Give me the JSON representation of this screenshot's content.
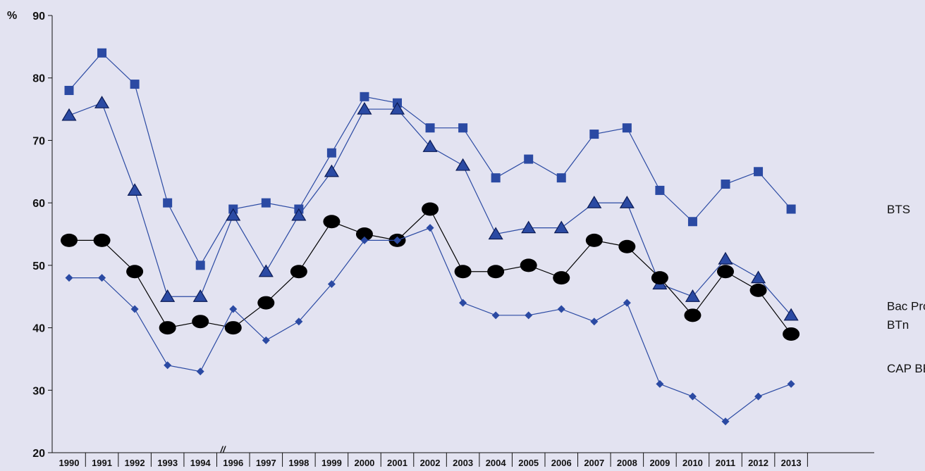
{
  "chart_data": {
    "type": "line",
    "ylabel": "%",
    "ylim": [
      20,
      90
    ],
    "yticks": [
      "20",
      "30",
      "40",
      "50",
      "60",
      "70",
      "80",
      "90"
    ],
    "categories": [
      "1990",
      "1991",
      "1992",
      "1993",
      "1994",
      "1996",
      "1997",
      "1998",
      "1999",
      "2000",
      "2001",
      "2002",
      "2003",
      "2004",
      "2005",
      "2006",
      "2007",
      "2008",
      "2009",
      "2010",
      "2011",
      "2012",
      "2013"
    ],
    "axis_break": "//",
    "axis_break_after": "1994",
    "grid": false,
    "legend": "inline-right",
    "colors": {
      "blue": "#2b4aa3",
      "black": "#000000",
      "background": "#e3e3f1"
    },
    "series": [
      {
        "name": "BTS",
        "marker": "square",
        "color": "#2b4aa3",
        "values": [
          78,
          84,
          79,
          60,
          50,
          59,
          60,
          59,
          68,
          77,
          76,
          72,
          72,
          64,
          67,
          64,
          71,
          72,
          62,
          57,
          63,
          65,
          59
        ]
      },
      {
        "name": "Bac Pro",
        "marker": "triangle",
        "color": "#2b4aa3",
        "values": [
          74,
          76,
          62,
          45,
          45,
          58,
          49,
          58,
          65,
          75,
          75,
          69,
          66,
          55,
          56,
          56,
          60,
          60,
          47,
          45,
          51,
          48,
          42
        ]
      },
      {
        "name": "BTn",
        "marker": "circle",
        "color": "#000000",
        "values": [
          54,
          54,
          49,
          40,
          41,
          40,
          44,
          49,
          57,
          55,
          54,
          59,
          49,
          49,
          50,
          48,
          54,
          53,
          48,
          42,
          49,
          46,
          39
        ]
      },
      {
        "name": "CAP BEP",
        "marker": "diamond",
        "color": "#2b4aa3",
        "values": [
          48,
          48,
          43,
          34,
          33,
          43,
          38,
          41,
          47,
          54,
          54,
          56,
          44,
          42,
          42,
          43,
          41,
          44,
          31,
          29,
          25,
          29,
          31
        ]
      }
    ]
  }
}
